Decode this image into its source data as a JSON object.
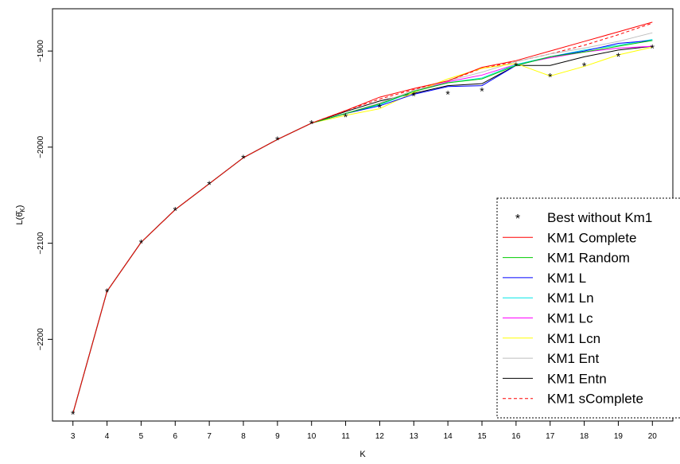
{
  "chart_data": {
    "type": "line",
    "xlabel": "K",
    "ylabel": "L(θ̂K)",
    "xlim": [
      2.4,
      20.6
    ],
    "ylim": [
      -2285,
      -1856
    ],
    "x_ticks": [
      3,
      4,
      5,
      6,
      7,
      8,
      9,
      10,
      11,
      12,
      13,
      14,
      15,
      16,
      17,
      18,
      19,
      20
    ],
    "y_ticks": [
      -2200,
      -2100,
      -2000,
      -1900
    ],
    "grid": false,
    "legend_position": "bottom-right",
    "x": [
      3,
      4,
      5,
      6,
      7,
      8,
      9,
      10,
      11,
      12,
      13,
      14,
      15,
      16,
      17,
      18,
      19,
      20
    ],
    "series": [
      {
        "name": "Best without Km1",
        "style": "points",
        "marker": "*",
        "color": "#000000",
        "values": [
          -2277,
          -2150,
          -2099,
          -2065,
          -2038,
          -2011,
          -1992,
          -1975,
          -1968,
          -1958,
          -1946,
          -1944,
          -1941,
          -1915,
          -1926,
          -1915,
          -1905,
          -1896
        ]
      },
      {
        "name": "KM1 Complete",
        "style": "solid",
        "color": "#ff0000",
        "values": [
          -2277,
          -2150,
          -2099,
          -2065,
          -2038,
          -2011,
          -1992,
          -1975,
          -1962,
          -1948,
          -1939,
          -1931,
          -1917,
          -1910,
          -1900,
          -1890,
          -1880,
          -1870
        ]
      },
      {
        "name": "KM1 Random",
        "style": "solid",
        "color": "#00cc00",
        "values": [
          -2277,
          -2150,
          -2099,
          -2065,
          -2038,
          -2011,
          -1992,
          -1975,
          -1965,
          -1955,
          -1942,
          -1933,
          -1929,
          -1915,
          -1906,
          -1901,
          -1895,
          -1889
        ]
      },
      {
        "name": "KM1 L",
        "style": "solid",
        "color": "#0000ff",
        "values": [
          -2277,
          -2150,
          -2099,
          -2065,
          -2038,
          -2011,
          -1992,
          -1975,
          -1965,
          -1957,
          -1945,
          -1937,
          -1936,
          -1915,
          -1906,
          -1900,
          -1892,
          -1889
        ]
      },
      {
        "name": "KM1 Ln",
        "style": "solid",
        "color": "#00e5e5",
        "values": [
          -2277,
          -2150,
          -2099,
          -2065,
          -2038,
          -2011,
          -1992,
          -1975,
          -1965,
          -1956,
          -1942,
          -1933,
          -1928,
          -1914,
          -1906,
          -1899,
          -1894,
          -1888
        ]
      },
      {
        "name": "KM1 Lc",
        "style": "solid",
        "color": "#ff00ff",
        "values": [
          -2277,
          -2150,
          -2099,
          -2065,
          -2038,
          -2011,
          -1992,
          -1975,
          -1965,
          -1955,
          -1942,
          -1932,
          -1925,
          -1914,
          -1907,
          -1901,
          -1897,
          -1895
        ]
      },
      {
        "name": "KM1 Lcn",
        "style": "solid",
        "color": "#ffff00",
        "values": [
          -2277,
          -2150,
          -2099,
          -2065,
          -2038,
          -2011,
          -1992,
          -1975,
          -1967,
          -1960,
          -1943,
          -1929,
          -1918,
          -1913,
          -1926,
          -1916,
          -1904,
          -1896
        ]
      },
      {
        "name": "KM1 Ent",
        "style": "solid",
        "color": "#bebebe",
        "values": [
          -2277,
          -2150,
          -2099,
          -2065,
          -2038,
          -2011,
          -1992,
          -1975,
          -1965,
          -1954,
          -1941,
          -1931,
          -1922,
          -1911,
          -1903,
          -1897,
          -1890,
          -1881
        ]
      },
      {
        "name": "KM1 Entn",
        "style": "solid",
        "color": "#000000",
        "values": [
          -2277,
          -2150,
          -2099,
          -2065,
          -2038,
          -2011,
          -1992,
          -1975,
          -1963,
          -1952,
          -1944,
          -1936,
          -1934,
          -1915,
          -1915,
          -1906,
          -1899,
          -1895
        ]
      },
      {
        "name": "KM1 sComplete",
        "style": "dashed",
        "color": "#ff0000",
        "values": [
          -2277,
          -2150,
          -2099,
          -2065,
          -2038,
          -2011,
          -1992,
          -1975,
          -1962,
          -1950,
          -1940,
          -1931,
          -1918,
          -1911,
          -1903,
          -1894,
          -1883,
          -1871
        ]
      }
    ]
  }
}
